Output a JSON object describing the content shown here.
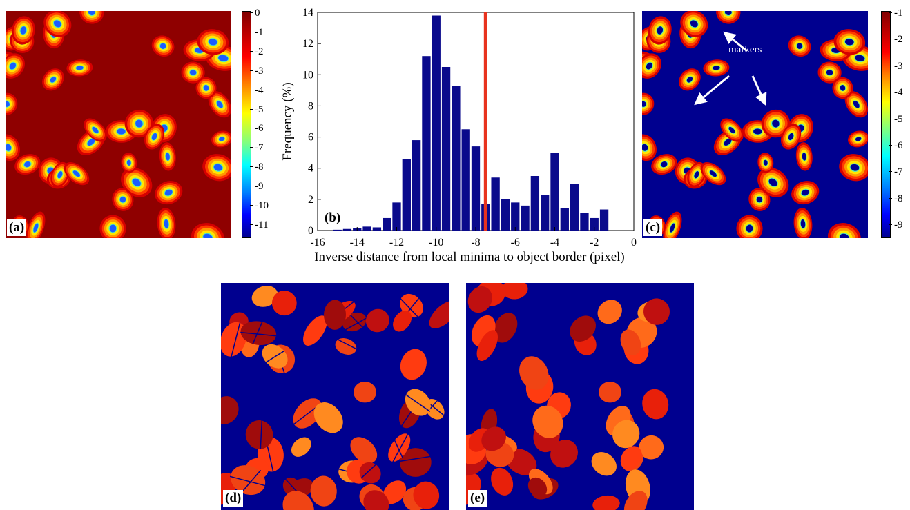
{
  "panels": {
    "a": {
      "label": "(a)"
    },
    "b": {
      "label": "(b)"
    },
    "c": {
      "label": "(c)"
    },
    "d": {
      "label": "(d)"
    },
    "e": {
      "label": "(e)"
    }
  },
  "colorbar_a": {
    "ticks": [
      "0",
      "-1",
      "-2",
      "-3",
      "-4",
      "-5",
      "-6",
      "-7",
      "-8",
      "-9",
      "-10",
      "-11"
    ]
  },
  "colorbar_c": {
    "ticks": [
      "-1",
      "-2",
      "-3",
      "-4",
      "-5",
      "-6",
      "-7",
      "-8",
      "-9"
    ]
  },
  "annotation": {
    "markers_label": "markers"
  },
  "colors": {
    "bar": "#0a0a8c",
    "threshold": "#e8331e",
    "background_blue": "#00008f",
    "background_red": "#8f0000"
  },
  "chart_data": {
    "type": "bar",
    "xlabel": "Inverse distance from local minima to object border (pixel)",
    "ylabel": "Frequency (%)",
    "xlim": [
      -16,
      0
    ],
    "ylim": [
      0,
      14
    ],
    "xticks": [
      "-16",
      "-14",
      "-12",
      "-10",
      "-8",
      "-6",
      "-4",
      "-2",
      "0"
    ],
    "yticks": [
      "0",
      "2",
      "4",
      "6",
      "8",
      "10",
      "12",
      "14"
    ],
    "bin_width": 0.5,
    "bins": [
      {
        "x": -15.0,
        "y": 0.05
      },
      {
        "x": -14.5,
        "y": 0.1
      },
      {
        "x": -14.0,
        "y": 0.15
      },
      {
        "x": -13.5,
        "y": 0.25
      },
      {
        "x": -13.0,
        "y": 0.2
      },
      {
        "x": -12.5,
        "y": 0.8
      },
      {
        "x": -12.0,
        "y": 1.8
      },
      {
        "x": -11.5,
        "y": 4.6
      },
      {
        "x": -11.0,
        "y": 5.8
      },
      {
        "x": -10.5,
        "y": 11.2
      },
      {
        "x": -10.0,
        "y": 13.8
      },
      {
        "x": -9.5,
        "y": 10.5
      },
      {
        "x": -9.0,
        "y": 9.3
      },
      {
        "x": -8.5,
        "y": 6.5
      },
      {
        "x": -8.0,
        "y": 5.4
      },
      {
        "x": -7.5,
        "y": 1.7
      },
      {
        "x": -7.0,
        "y": 3.4
      },
      {
        "x": -6.5,
        "y": 2.0
      },
      {
        "x": -6.0,
        "y": 1.8
      },
      {
        "x": -5.5,
        "y": 1.6
      },
      {
        "x": -5.0,
        "y": 3.5
      },
      {
        "x": -4.5,
        "y": 2.3
      },
      {
        "x": -4.0,
        "y": 5.0
      },
      {
        "x": -3.5,
        "y": 1.45
      },
      {
        "x": -3.0,
        "y": 3.0
      },
      {
        "x": -2.5,
        "y": 1.15
      },
      {
        "x": -2.0,
        "y": 0.8
      },
      {
        "x": -1.5,
        "y": 1.35
      }
    ],
    "threshold_x": -7.5,
    "grid": false
  }
}
